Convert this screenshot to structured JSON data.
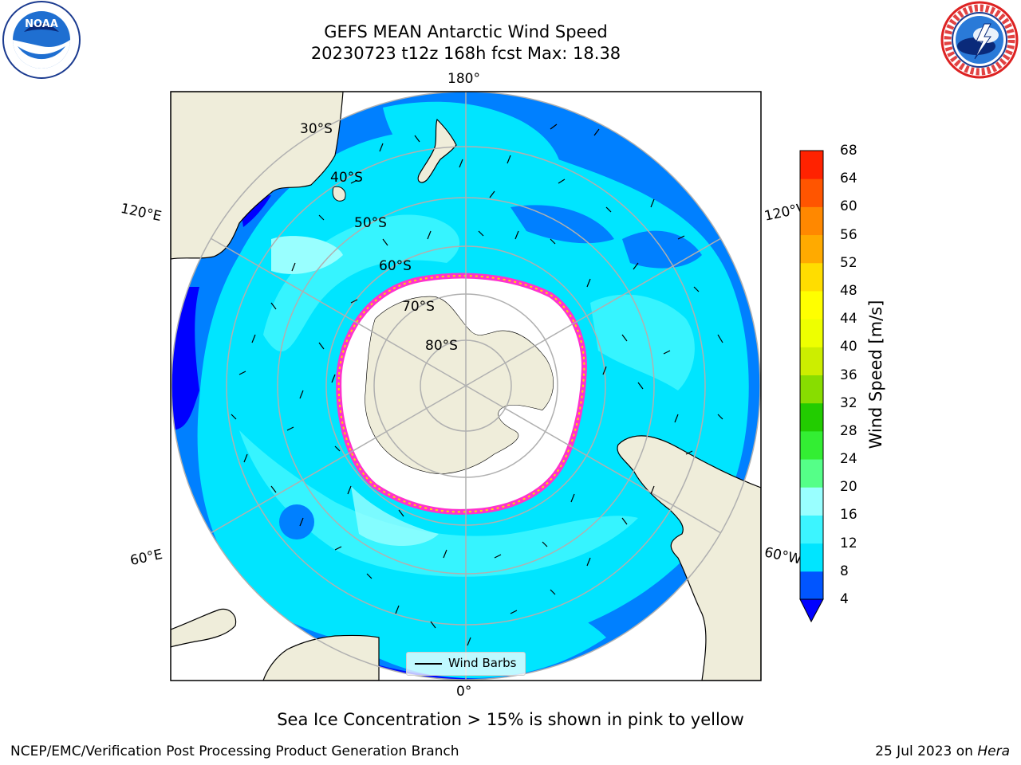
{
  "title": {
    "line1": "GEFS MEAN Antarctic Wind Speed",
    "line2": "20230723 t12z 168h fcst   Max: 18.38"
  },
  "logos": {
    "noaa": {
      "text": "NOAA",
      "icon": "noaa-logo-icon"
    },
    "nws": {
      "icon": "nws-logo-icon"
    }
  },
  "map": {
    "projection": "south-polar-stereographic",
    "longitude_labels": {
      "top": "180°",
      "bottom": "0°",
      "upper_left": "120°E",
      "upper_right": "120°W",
      "lower_left": "60°E",
      "lower_right": "60°W"
    },
    "latitude_labels": [
      "30°S",
      "40°S",
      "50°S",
      "60°S",
      "70°S",
      "80°S"
    ],
    "legend_label": "Wind Barbs",
    "colors": {
      "land": "#efedda",
      "sea_ice_edge": "#ff33cc",
      "gridline": "#b0b0b0"
    }
  },
  "colorbar": {
    "label": "Wind Speed [m/s]",
    "ticks": [
      "68",
      "64",
      "60",
      "56",
      "52",
      "48",
      "44",
      "40",
      "36",
      "32",
      "28",
      "24",
      "20",
      "16",
      "12",
      "8",
      "4"
    ],
    "colors_bottom_to_top": [
      "#0055ff",
      "#00e5ff",
      "#3cf5ff",
      "#99ffff",
      "#55ff88",
      "#33ee33",
      "#22cc00",
      "#88dd00",
      "#ccee00",
      "#eeff00",
      "#ffff00",
      "#ffdd00",
      "#ffaa00",
      "#ff8800",
      "#ff5500",
      "#ff2200",
      "#ff0000"
    ],
    "underflow_color": "#0000ff"
  },
  "caption": "Sea Ice Concentration > 15% is shown in pink to yellow",
  "footer": {
    "left": "NCEP/EMC/Verification Post Processing Product Generation Branch",
    "right_date": "25 Jul 2023 on",
    "right_host": "Hera"
  }
}
